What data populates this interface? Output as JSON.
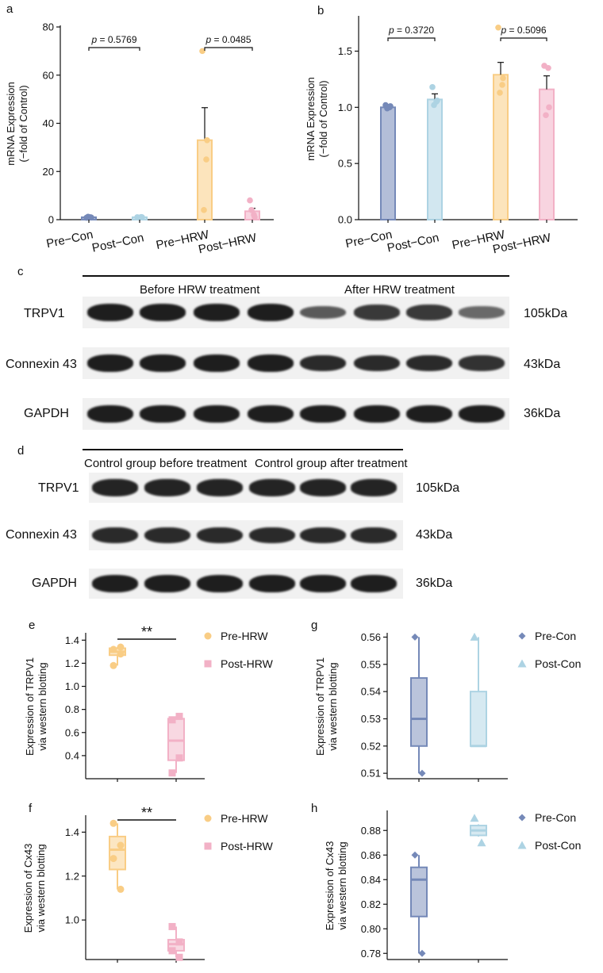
{
  "chart_data": [
    {
      "panel": "a",
      "type": "bar",
      "categories": [
        "Pre−Con",
        "Post−Con",
        "Pre−HRW",
        "Post−HRW"
      ],
      "values": [
        1,
        1,
        33,
        3.5
      ],
      "errors": [
        0.4,
        0.3,
        13.5,
        1.2
      ],
      "points": [
        [
          0.8,
          1.0,
          1.2,
          0.9
        ],
        [
          1.0,
          1.1,
          0.9,
          1.0
        ],
        [
          70,
          25,
          4,
          33
        ],
        [
          8,
          2,
          4,
          1
        ]
      ],
      "ylabel": "mRNA Expression\n(−fold of Control)",
      "ylim": [
        0,
        80
      ],
      "yticks": [
        0,
        20,
        40,
        60,
        80
      ],
      "colors": [
        "#7589b8",
        "#add3e3",
        "#f9cd85",
        "#f2b1c6"
      ],
      "annotations": [
        {
          "pair": [
            0,
            1
          ],
          "text": "p = 0.5769"
        },
        {
          "pair": [
            2,
            3
          ],
          "text": "p = 0.0485"
        }
      ]
    },
    {
      "panel": "b",
      "type": "bar",
      "categories": [
        "Pre−Con",
        "Post−Con",
        "Pre−HRW",
        "Post−HRW"
      ],
      "values": [
        1.0,
        1.07,
        1.29,
        1.16
      ],
      "errors": [
        0.02,
        0.05,
        0.11,
        0.12
      ],
      "points": [
        [
          1.02,
          1.0,
          0.99,
          1.01
        ],
        [
          1.18,
          1.05,
          1.02,
          1.06
        ],
        [
          1.71,
          1.2,
          1.13,
          1.26
        ],
        [
          1.37,
          1.35,
          0.93,
          1.0
        ]
      ],
      "ylabel": "mRNA Expression\n(−fold of Control)",
      "ylim": [
        0,
        1.8
      ],
      "yticks": [
        0.0,
        0.5,
        1.0,
        1.5
      ],
      "colors": [
        "#7589b8",
        "#add3e3",
        "#f9cd85",
        "#f2b1c6"
      ],
      "annotations": [
        {
          "pair": [
            0,
            1
          ],
          "text": "p = 0.3720"
        },
        {
          "pair": [
            2,
            3
          ],
          "text": "p = 0.5096"
        }
      ]
    },
    {
      "panel": "e",
      "type": "box",
      "ylabel": "Expression of TRPV1\nvia western blotting",
      "ylim": [
        0.2,
        1.45
      ],
      "yticks": [
        0.4,
        0.6,
        0.8,
        1.0,
        1.2,
        1.4
      ],
      "groups": [
        {
          "name": "Pre-HRW",
          "color": "#f9cd85",
          "marker": "circle",
          "min": 1.18,
          "q1": 1.27,
          "median": 1.3,
          "q3": 1.33,
          "max": 1.34,
          "points": [
            1.18,
            1.28,
            1.32,
            1.34
          ]
        },
        {
          "name": "Post-HRW",
          "color": "#f2b1c6",
          "marker": "square",
          "min": 0.25,
          "q1": 0.36,
          "median": 0.53,
          "q3": 0.72,
          "max": 0.74,
          "points": [
            0.25,
            0.38,
            0.71,
            0.74
          ]
        }
      ],
      "significance": "**"
    },
    {
      "panel": "g",
      "type": "box",
      "ylabel": "Expression of TRPV1\nvia western blotting",
      "ylim": [
        0.508,
        0.561
      ],
      "yticks": [
        0.51,
        0.52,
        0.53,
        0.54,
        0.55,
        0.56
      ],
      "groups": [
        {
          "name": "Pre-Con",
          "color": "#7589b8",
          "marker": "diamond",
          "min": 0.51,
          "q1": 0.52,
          "median": 0.53,
          "q3": 0.545,
          "max": 0.56,
          "points": [
            0.56,
            0.51
          ]
        },
        {
          "name": "Post-Con",
          "color": "#add3e3",
          "marker": "triangle",
          "min": 0.52,
          "q1": 0.52,
          "median": 0.52,
          "q3": 0.54,
          "max": 0.56,
          "points": [
            0.56
          ]
        }
      ]
    },
    {
      "panel": "f",
      "type": "box",
      "ylabel": "Expression of Cx43\nvia western blotting",
      "ylim": [
        0.82,
        1.47
      ],
      "yticks": [
        1.0,
        1.2,
        1.4
      ],
      "groups": [
        {
          "name": "Pre-HRW",
          "color": "#f9cd85",
          "marker": "circle",
          "min": 1.14,
          "q1": 1.23,
          "median": 1.32,
          "q3": 1.38,
          "max": 1.44,
          "points": [
            1.44,
            1.34,
            1.28,
            1.14
          ]
        },
        {
          "name": "Post-HRW",
          "color": "#f2b1c6",
          "marker": "square",
          "min": 0.83,
          "q1": 0.86,
          "median": 0.89,
          "q3": 0.91,
          "max": 0.97,
          "points": [
            0.97,
            0.9,
            0.86,
            0.83
          ]
        }
      ],
      "significance": "**"
    },
    {
      "panel": "h",
      "type": "box",
      "ylabel": "Expression of Cx43\nvia western blotting",
      "ylim": [
        0.775,
        0.895
      ],
      "yticks": [
        0.78,
        0.8,
        0.82,
        0.84,
        0.86,
        0.88
      ],
      "groups": [
        {
          "name": "Pre-Con",
          "color": "#7589b8",
          "marker": "diamond",
          "min": 0.78,
          "q1": 0.81,
          "median": 0.84,
          "q3": 0.85,
          "max": 0.86,
          "points": [
            0.86,
            0.78
          ]
        },
        {
          "name": "Post-Con",
          "color": "#add3e3",
          "marker": "triangle",
          "min": 0.875,
          "q1": 0.876,
          "median": 0.88,
          "q3": 0.884,
          "max": 0.885,
          "points": [
            0.89,
            0.87
          ]
        }
      ]
    }
  ],
  "blots": {
    "c": {
      "letter": "c",
      "conditions": [
        "Before HRW treatment",
        "After HRW treatment"
      ],
      "rows": [
        {
          "protein": "TRPV1",
          "size": "105kDa",
          "intensities": [
            1,
            1,
            1,
            1,
            0.55,
            0.8,
            0.8,
            0.45
          ]
        },
        {
          "protein": "Connexin 43",
          "size": "43kDa",
          "intensities": [
            1,
            1,
            1,
            1,
            0.9,
            0.9,
            0.9,
            0.85
          ]
        },
        {
          "protein": "GAPDH",
          "size": "36kDa",
          "intensities": [
            1,
            1,
            1,
            1,
            1,
            1,
            1,
            1
          ]
        }
      ]
    },
    "d": {
      "letter": "d",
      "conditions": [
        "Control group before treatment",
        "Control group after treatment"
      ],
      "rows": [
        {
          "protein": "TRPV1",
          "size": "105kDa",
          "intensities": [
            0.95,
            0.95,
            0.95,
            0.95,
            0.95,
            0.95
          ]
        },
        {
          "protein": "Connexin 43",
          "size": "43kDa",
          "intensities": [
            0.9,
            0.9,
            0.9,
            0.9,
            0.9,
            0.9
          ]
        },
        {
          "protein": "GAPDH",
          "size": "36kDa",
          "intensities": [
            1,
            1,
            1,
            1,
            1,
            1
          ]
        }
      ]
    }
  }
}
